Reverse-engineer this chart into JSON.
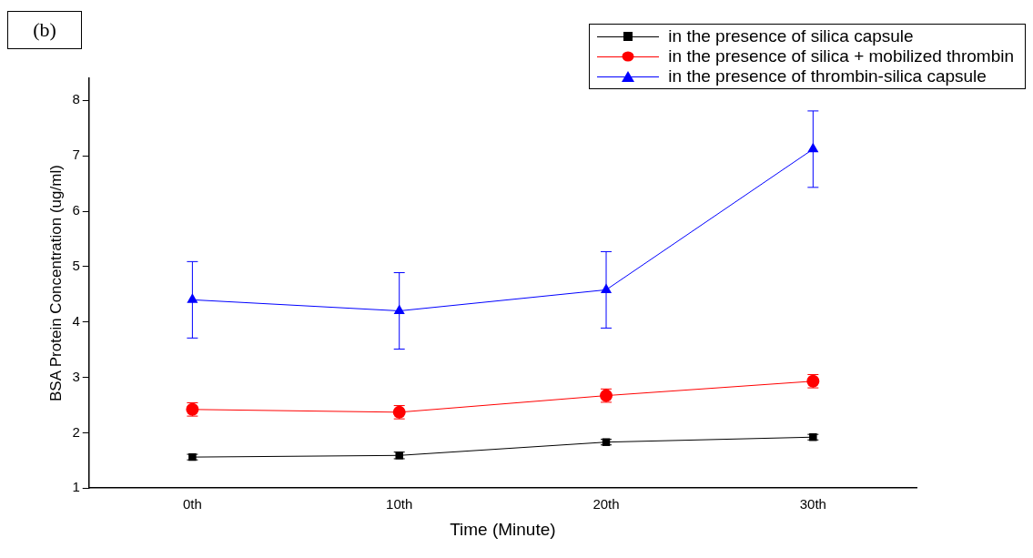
{
  "chart_data": {
    "type": "line",
    "xlabel": "Time (Minute)",
    "ylabel": "BSA Protein Concentration (ug/ml)",
    "categories": [
      "0th",
      "10th",
      "20th",
      "30th"
    ],
    "series": [
      {
        "name": "in the presence of silica capsule",
        "color": "#000000",
        "marker": "square",
        "values": [
          1.56,
          1.59,
          1.83,
          1.92
        ],
        "errors": [
          0.05,
          0.06,
          0.05,
          0.05
        ]
      },
      {
        "name": "in the presence of silica + mobilized thrombin",
        "color": "#ff0000",
        "marker": "circle",
        "values": [
          2.42,
          2.37,
          2.67,
          2.93
        ],
        "errors": [
          0.12,
          0.12,
          0.12,
          0.12
        ]
      },
      {
        "name": "in the presence of thrombin-silica capsule",
        "color": "#0000ff",
        "marker": "triangle",
        "values": [
          4.4,
          4.2,
          4.58,
          7.12
        ],
        "errors": [
          0.69,
          0.69,
          0.69,
          0.69
        ]
      }
    ],
    "ylim": [
      1,
      8.4
    ],
    "yticks": [
      1,
      2,
      3,
      4,
      5,
      6,
      7,
      8
    ],
    "grid": false,
    "legend": "top right",
    "line_style": "solid",
    "annotations": [
      "(b)"
    ]
  }
}
